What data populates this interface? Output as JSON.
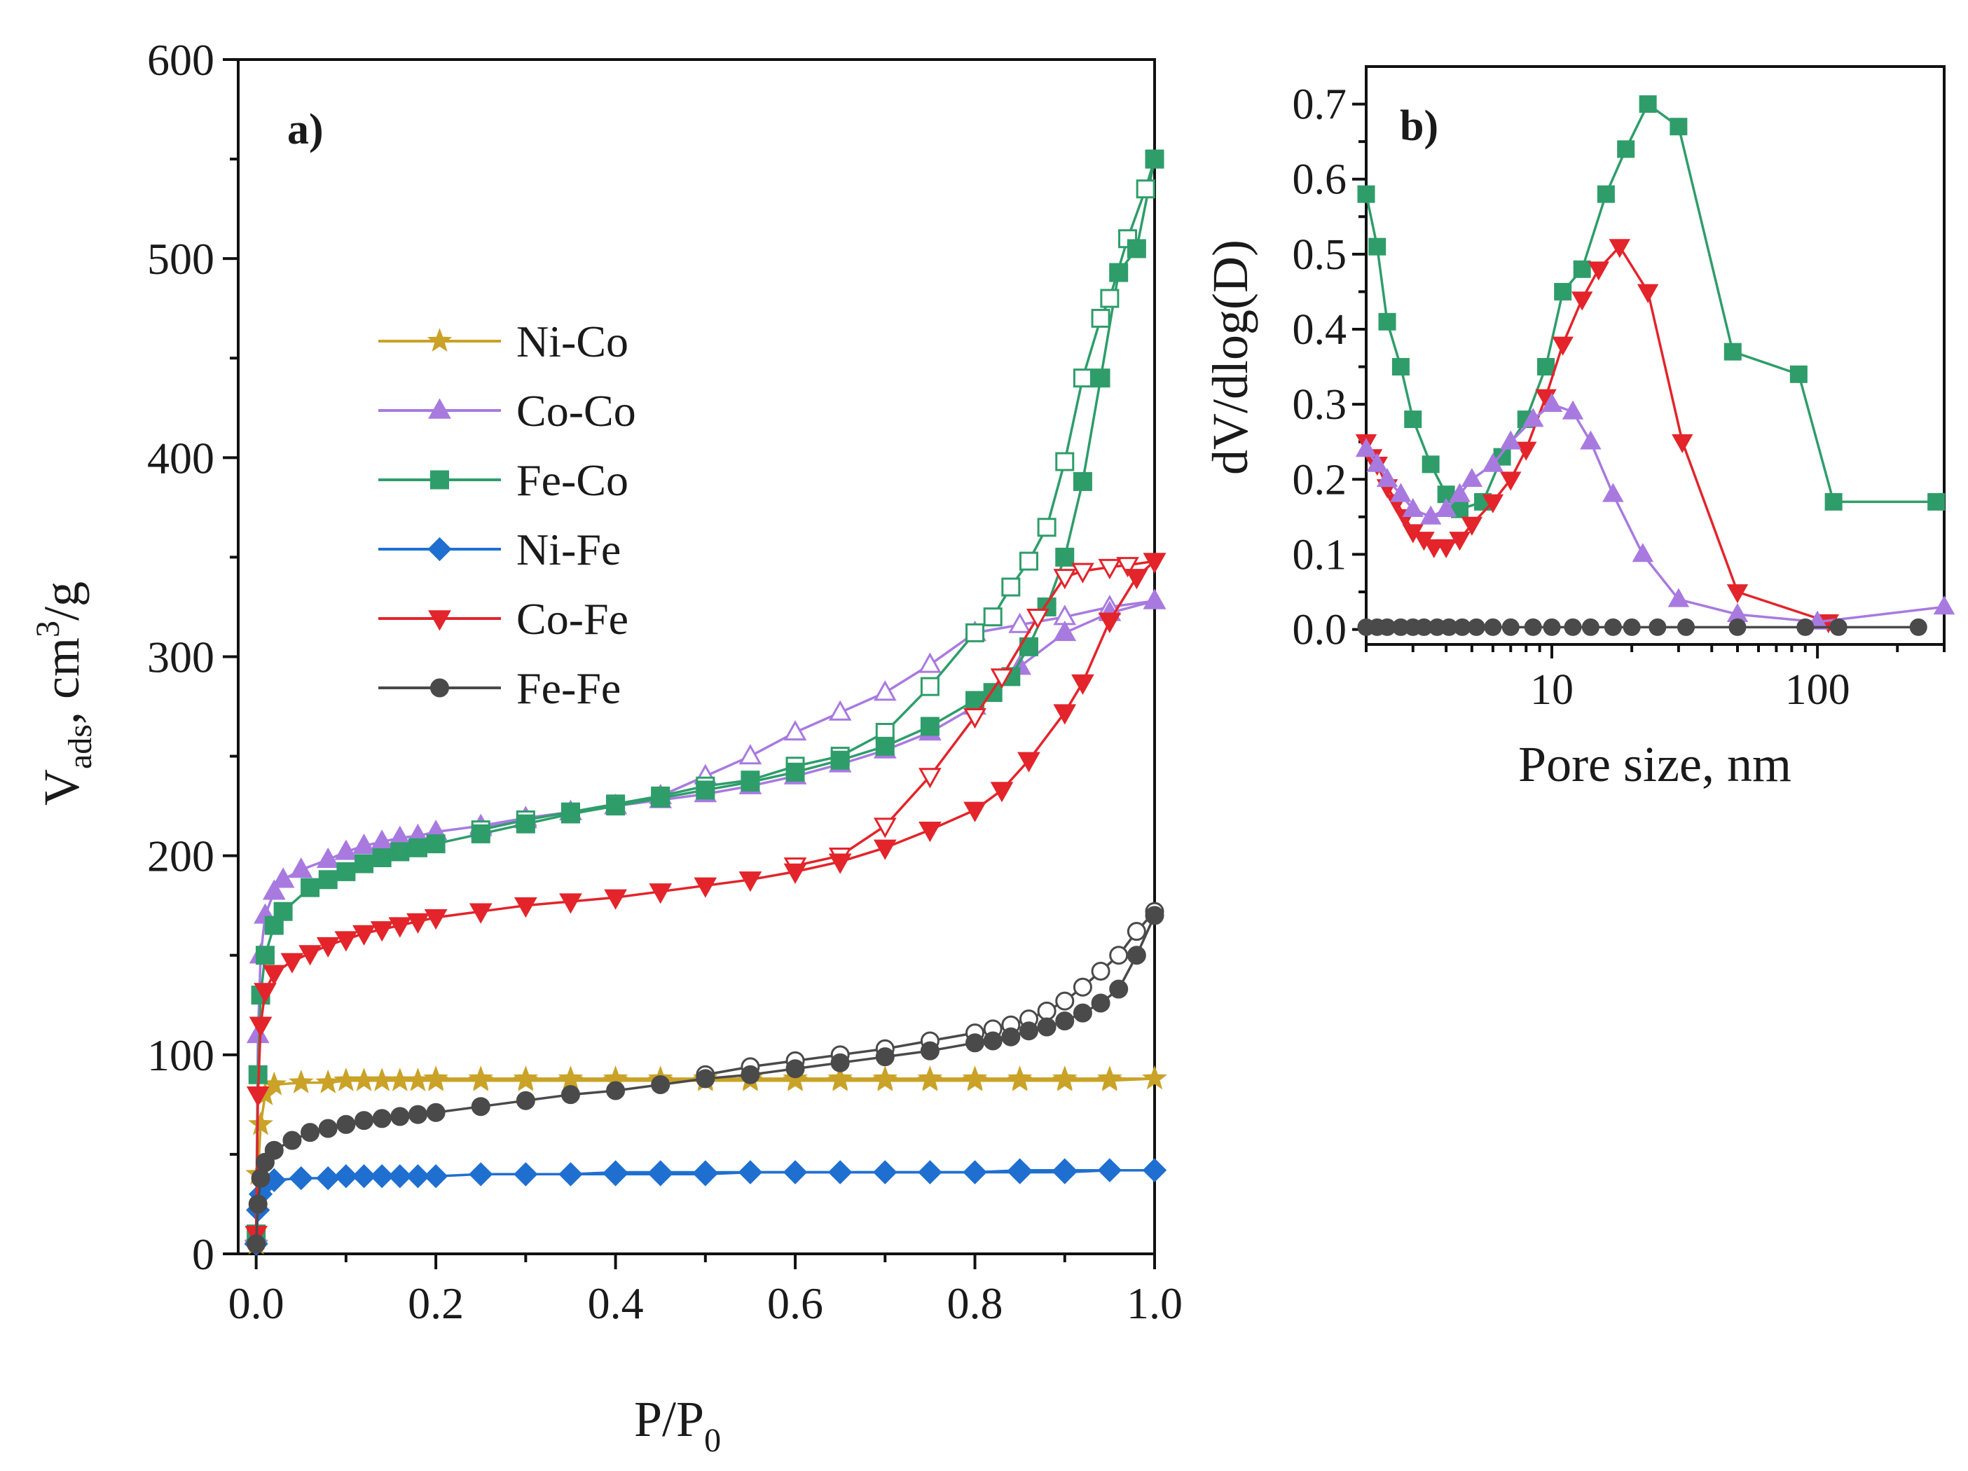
{
  "colors": {
    "Ni-Co": "#c9a227",
    "Co-Co": "#a87ae0",
    "Fe-Co": "#2e9d6a",
    "Ni-Fe": "#1f6fd0",
    "Co-Fe": "#e3242b",
    "Fe-Fe": "#4a4a4a"
  },
  "markers": {
    "Ni-Co": "star",
    "Co-Co": "triangle-up",
    "Fe-Co": "square",
    "Ni-Fe": "diamond",
    "Co-Fe": "triangle-down",
    "Fe-Fe": "circle"
  },
  "chart_data": [
    {
      "panel": "a)",
      "type": "line",
      "xlabel": "P/P",
      "xlabel_sub": "0",
      "ylabel_main": "V",
      "ylabel_sub": "ads",
      "ylabel_rest": ", cm",
      "ylabel_sup": "3",
      "ylabel_tail": "/g",
      "xlim": [
        -0.02,
        1.0
      ],
      "ylim": [
        0,
        600
      ],
      "xticks": [
        0.0,
        0.2,
        0.4,
        0.6,
        0.8,
        1.0
      ],
      "xtick_labels": [
        "0.0",
        "0.2",
        "0.4",
        "0.6",
        "0.8",
        "1.0"
      ],
      "yticks": [
        0,
        100,
        200,
        300,
        400,
        500,
        600
      ],
      "ytick_labels": [
        "0",
        "100",
        "200",
        "300",
        "400",
        "500",
        "600"
      ],
      "legend": [
        "Ni-Co",
        "Co-Co",
        "Fe-Co",
        "Ni-Fe",
        "Co-Fe",
        "Fe-Fe"
      ],
      "series": [
        {
          "name": "Ni-Co",
          "adsorption": {
            "x": [
              0.0,
              0.002,
              0.005,
              0.01,
              0.02,
              0.05,
              0.08,
              0.1,
              0.12,
              0.14,
              0.16,
              0.18,
              0.2,
              0.25,
              0.3,
              0.35,
              0.4,
              0.45,
              0.5,
              0.55,
              0.6,
              0.65,
              0.7,
              0.75,
              0.8,
              0.85,
              0.9,
              0.95,
              1.0
            ],
            "y": [
              5,
              40,
              65,
              80,
              85,
              86,
              86,
              87,
              87,
              87,
              87,
              87,
              87,
              87,
              87,
              87,
              87,
              87,
              87,
              87,
              87,
              87,
              87,
              87,
              87,
              87,
              87,
              87,
              88
            ]
          },
          "desorption": {
            "x": [
              1.0,
              0.95,
              0.9,
              0.85,
              0.8,
              0.75,
              0.7,
              0.65,
              0.6,
              0.55,
              0.5,
              0.45,
              0.4,
              0.35,
              0.3,
              0.25,
              0.2
            ],
            "y": [
              88,
              88,
              88,
              88,
              88,
              88,
              88,
              88,
              88,
              88,
              88,
              88,
              88,
              88,
              88,
              88,
              88
            ]
          }
        },
        {
          "name": "Co-Co",
          "adsorption": {
            "x": [
              0.0,
              0.002,
              0.005,
              0.01,
              0.02,
              0.03,
              0.05,
              0.08,
              0.1,
              0.12,
              0.14,
              0.16,
              0.18,
              0.2,
              0.25,
              0.3,
              0.35,
              0.4,
              0.45,
              0.5,
              0.55,
              0.6,
              0.65,
              0.7,
              0.75,
              0.8,
              0.85,
              0.9,
              0.95,
              1.0
            ],
            "y": [
              10,
              110,
              150,
              170,
              182,
              188,
              193,
              198,
              202,
              205,
              207,
              209,
              210,
              212,
              215,
              219,
              222,
              225,
              228,
              231,
              235,
              240,
              246,
              253,
              262,
              275,
              295,
              312,
              322,
              328
            ]
          },
          "desorption": {
            "x": [
              1.0,
              0.95,
              0.9,
              0.85,
              0.8,
              0.75,
              0.7,
              0.65,
              0.6,
              0.55,
              0.5,
              0.45,
              0.4,
              0.35,
              0.3,
              0.25
            ],
            "y": [
              328,
              325,
              320,
              316,
              312,
              296,
              282,
              272,
              262,
              250,
              240,
              230,
              225,
              222,
              218,
              214
            ]
          }
        },
        {
          "name": "Fe-Co",
          "adsorption": {
            "x": [
              0.0,
              0.002,
              0.005,
              0.01,
              0.02,
              0.03,
              0.06,
              0.08,
              0.1,
              0.12,
              0.14,
              0.16,
              0.18,
              0.2,
              0.25,
              0.3,
              0.35,
              0.4,
              0.45,
              0.5,
              0.55,
              0.6,
              0.65,
              0.7,
              0.75,
              0.8,
              0.82,
              0.84,
              0.86,
              0.88,
              0.9,
              0.92,
              0.94,
              0.96,
              0.98,
              1.0
            ],
            "y": [
              10,
              90,
              130,
              150,
              165,
              172,
              184,
              188,
              192,
              196,
              199,
              202,
              204,
              206,
              211,
              216,
              221,
              225,
              229,
              233,
              237,
              242,
              248,
              255,
              265,
              278,
              282,
              290,
              305,
              325,
              350,
              388,
              440,
              493,
              505,
              550
            ]
          },
          "desorption": {
            "x": [
              1.0,
              0.99,
              0.97,
              0.95,
              0.94,
              0.92,
              0.9,
              0.88,
              0.86,
              0.84,
              0.82,
              0.8,
              0.75,
              0.7,
              0.65,
              0.6,
              0.55,
              0.5,
              0.45,
              0.4,
              0.35,
              0.3,
              0.25
            ],
            "y": [
              550,
              535,
              510,
              480,
              470,
              440,
              398,
              365,
              348,
              335,
              320,
              312,
              285,
              262,
              250,
              245,
              238,
              235,
              230,
              226,
              222,
              218,
              213
            ]
          }
        },
        {
          "name": "Ni-Fe",
          "adsorption": {
            "x": [
              0.0,
              0.002,
              0.005,
              0.01,
              0.02,
              0.05,
              0.08,
              0.1,
              0.12,
              0.14,
              0.16,
              0.18,
              0.2,
              0.25,
              0.3,
              0.35,
              0.4,
              0.45,
              0.5,
              0.55,
              0.6,
              0.65,
              0.7,
              0.75,
              0.8,
              0.85,
              0.9,
              0.95,
              1.0
            ],
            "y": [
              5,
              22,
              30,
              35,
              37,
              38,
              38,
              39,
              39,
              39,
              39,
              39,
              39,
              40,
              40,
              40,
              40,
              40,
              40,
              41,
              41,
              41,
              41,
              41,
              41,
              41,
              41,
              42,
              42
            ]
          },
          "desorption": {
            "x": [
              1.0,
              0.95,
              0.9,
              0.85,
              0.8,
              0.75,
              0.7,
              0.65,
              0.6,
              0.55,
              0.5,
              0.45,
              0.4,
              0.35,
              0.3
            ],
            "y": [
              42,
              42,
              42,
              42,
              41,
              41,
              41,
              41,
              41,
              41,
              41,
              41,
              41,
              40,
              40
            ]
          }
        },
        {
          "name": "Co-Fe",
          "adsorption": {
            "x": [
              0.0,
              0.002,
              0.005,
              0.01,
              0.02,
              0.04,
              0.06,
              0.08,
              0.1,
              0.12,
              0.14,
              0.16,
              0.18,
              0.2,
              0.25,
              0.3,
              0.35,
              0.4,
              0.45,
              0.5,
              0.55,
              0.6,
              0.65,
              0.7,
              0.75,
              0.8,
              0.83,
              0.86,
              0.9,
              0.92,
              0.95,
              0.98,
              1.0
            ],
            "y": [
              10,
              80,
              115,
              132,
              141,
              147,
              151,
              155,
              158,
              161,
              163,
              165,
              167,
              169,
              172,
              175,
              177,
              179,
              182,
              185,
              188,
              192,
              197,
              204,
              213,
              223,
              233,
              248,
              272,
              287,
              318,
              340,
              348
            ]
          },
          "desorption": {
            "x": [
              1.0,
              0.97,
              0.95,
              0.92,
              0.9,
              0.87,
              0.83,
              0.8,
              0.75,
              0.7,
              0.65,
              0.6
            ],
            "y": [
              348,
              346,
              345,
              343,
              340,
              320,
              290,
              270,
              240,
              215,
              200,
              195
            ]
          }
        },
        {
          "name": "Fe-Fe",
          "adsorption": {
            "x": [
              0.0,
              0.002,
              0.005,
              0.01,
              0.02,
              0.04,
              0.06,
              0.08,
              0.1,
              0.12,
              0.14,
              0.16,
              0.18,
              0.2,
              0.25,
              0.3,
              0.35,
              0.4,
              0.45,
              0.5,
              0.55,
              0.6,
              0.65,
              0.7,
              0.75,
              0.8,
              0.82,
              0.84,
              0.86,
              0.88,
              0.9,
              0.92,
              0.94,
              0.96,
              0.98,
              1.0
            ],
            "y": [
              5,
              25,
              38,
              46,
              52,
              57,
              61,
              63,
              65,
              67,
              68,
              69,
              70,
              71,
              74,
              77,
              80,
              82,
              85,
              88,
              90,
              93,
              96,
              99,
              102,
              106,
              107,
              109,
              112,
              114,
              117,
              121,
              126,
              133,
              150,
              170
            ]
          },
          "desorption": {
            "x": [
              1.0,
              0.98,
              0.96,
              0.94,
              0.92,
              0.9,
              0.88,
              0.86,
              0.84,
              0.82,
              0.8,
              0.75,
              0.7,
              0.65,
              0.6,
              0.55,
              0.5
            ],
            "y": [
              172,
              162,
              150,
              142,
              134,
              127,
              122,
              118,
              115,
              113,
              111,
              107,
              103,
              100,
              97,
              94,
              90
            ]
          }
        }
      ]
    },
    {
      "panel": "b)",
      "type": "line",
      "xscale": "log",
      "xlabel": "Pore size, nm",
      "ylabel": "dV/dlog(D)",
      "xlim": [
        2,
        300
      ],
      "ylim": [
        -0.02,
        0.75
      ],
      "xticks": [
        10,
        100
      ],
      "xtick_labels": [
        "10",
        "100"
      ],
      "yticks": [
        0.0,
        0.1,
        0.2,
        0.3,
        0.4,
        0.5,
        0.6,
        0.7
      ],
      "ytick_labels": [
        "0.0",
        "0.1",
        "0.2",
        "0.3",
        "0.4",
        "0.5",
        "0.6",
        "0.7"
      ],
      "series": [
        {
          "name": "Fe-Co",
          "x": [
            2.0,
            2.2,
            2.4,
            2.7,
            3.0,
            3.5,
            4.0,
            4.5,
            5.5,
            6.5,
            8.0,
            9.5,
            11,
            13,
            16,
            19,
            23,
            30,
            48,
            85,
            115,
            280
          ],
          "y": [
            0.58,
            0.51,
            0.41,
            0.35,
            0.28,
            0.22,
            0.18,
            0.16,
            0.17,
            0.23,
            0.28,
            0.35,
            0.45,
            0.48,
            0.58,
            0.64,
            0.7,
            0.67,
            0.37,
            0.34,
            0.17,
            0.17
          ]
        },
        {
          "name": "Co-Fe",
          "x": [
            2.0,
            2.1,
            2.2,
            2.4,
            2.6,
            2.8,
            3.0,
            3.3,
            3.6,
            4.0,
            4.5,
            5.0,
            6.0,
            7.0,
            8.0,
            9.5,
            11,
            13,
            15,
            18,
            23,
            31,
            50,
            110
          ],
          "y": [
            0.25,
            0.23,
            0.22,
            0.19,
            0.17,
            0.15,
            0.13,
            0.12,
            0.11,
            0.11,
            0.12,
            0.14,
            0.17,
            0.2,
            0.24,
            0.31,
            0.38,
            0.44,
            0.48,
            0.51,
            0.45,
            0.25,
            0.05,
            0.01
          ]
        },
        {
          "name": "Co-Co",
          "x": [
            2.0,
            2.2,
            2.4,
            2.7,
            3.0,
            3.5,
            4.0,
            4.5,
            5.0,
            6.0,
            7.0,
            8.5,
            10,
            12,
            14,
            17,
            22,
            30,
            50,
            100,
            300
          ],
          "y": [
            0.24,
            0.22,
            0.2,
            0.18,
            0.16,
            0.15,
            0.16,
            0.18,
            0.2,
            0.22,
            0.25,
            0.28,
            0.3,
            0.29,
            0.25,
            0.18,
            0.1,
            0.04,
            0.02,
            0.01,
            0.03
          ]
        },
        {
          "name": "Fe-Fe",
          "x": [
            2.0,
            2.2,
            2.4,
            2.7,
            3.0,
            3.3,
            3.7,
            4.1,
            4.6,
            5.2,
            6.0,
            7.0,
            8.5,
            10,
            12,
            14,
            17,
            20,
            25,
            32,
            50,
            90,
            120,
            240
          ],
          "y": [
            0.003,
            0.003,
            0.003,
            0.003,
            0.003,
            0.003,
            0.003,
            0.003,
            0.003,
            0.003,
            0.003,
            0.003,
            0.003,
            0.003,
            0.003,
            0.003,
            0.003,
            0.003,
            0.003,
            0.003,
            0.003,
            0.003,
            0.003,
            0.003
          ]
        }
      ]
    }
  ]
}
